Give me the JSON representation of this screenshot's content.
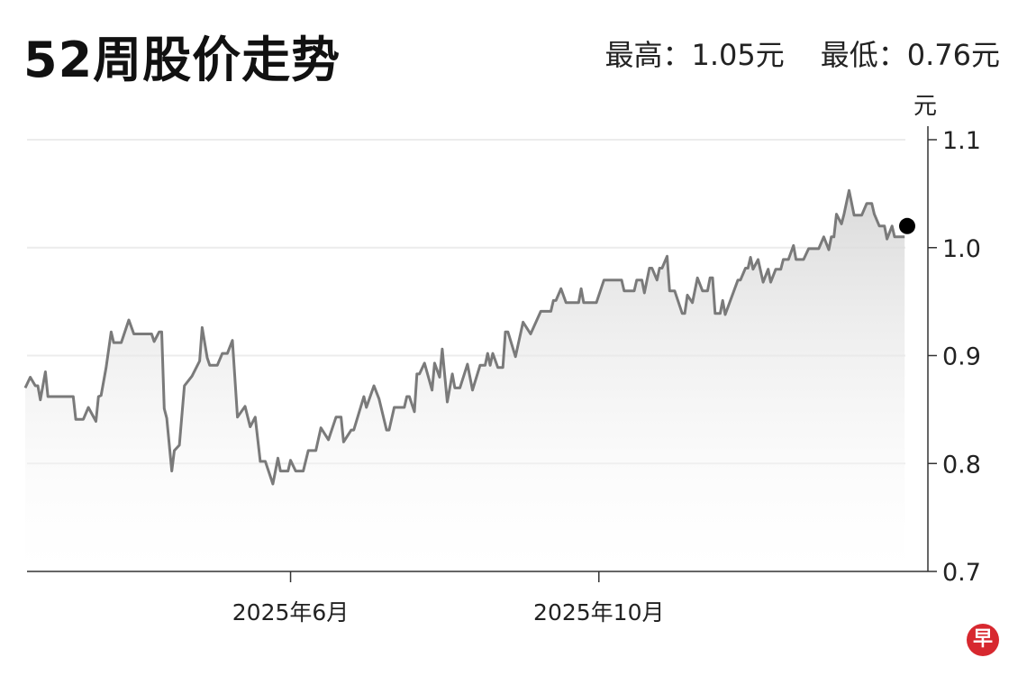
{
  "header": {
    "title": "52周股价走势",
    "high_label": "最高：1.05元",
    "low_label": "最低：0.76元"
  },
  "logo": {
    "text": "早",
    "color": "#d7282f"
  },
  "chart_data": {
    "type": "line",
    "title": "52周股价走势",
    "ylabel": "元",
    "ylim": [
      0.7,
      1.1
    ],
    "yticks": [
      "0.7",
      "0.8",
      "0.9",
      "1.0",
      "1.1"
    ],
    "xlim": [
      "2025-02-16",
      "2026-01-31"
    ],
    "xticks": [
      {
        "date": "2025-06-01",
        "label": "2025年6月"
      },
      {
        "date": "2025-10-01",
        "label": "2025年10月"
      }
    ],
    "grid": true,
    "line_color": "#7a7a7a",
    "fill": "gray gradient under line",
    "last_point": {
      "date": "2026-01-31",
      "value": 1.02,
      "color": "#000000"
    },
    "points": [
      [
        "2025-02-16",
        0.87
      ],
      [
        "2025-02-18",
        0.88
      ],
      [
        "2025-02-20",
        0.872
      ],
      [
        "2025-02-21",
        0.872
      ],
      [
        "2025-02-22",
        0.859
      ],
      [
        "2025-02-24",
        0.885
      ],
      [
        "2025-02-25",
        0.862
      ],
      [
        "2025-03-07",
        0.862
      ],
      [
        "2025-03-08",
        0.841
      ],
      [
        "2025-03-11",
        0.841
      ],
      [
        "2025-03-13",
        0.852
      ],
      [
        "2025-03-16",
        0.839
      ],
      [
        "2025-03-17",
        0.862
      ],
      [
        "2025-03-18",
        0.863
      ],
      [
        "2025-03-20",
        0.889
      ],
      [
        "2025-03-22",
        0.922
      ],
      [
        "2025-03-23",
        0.912
      ],
      [
        "2025-03-26",
        0.912
      ],
      [
        "2025-03-29",
        0.933
      ],
      [
        "2025-03-31",
        0.92
      ],
      [
        "2025-04-07",
        0.92
      ],
      [
        "2025-04-08",
        0.913
      ],
      [
        "2025-04-10",
        0.922
      ],
      [
        "2025-04-11",
        0.922
      ],
      [
        "2025-04-12",
        0.851
      ],
      [
        "2025-04-13",
        0.842
      ],
      [
        "2025-04-15",
        0.793
      ],
      [
        "2025-04-16",
        0.812
      ],
      [
        "2025-04-18",
        0.817
      ],
      [
        "2025-04-20",
        0.872
      ],
      [
        "2025-04-23",
        0.881
      ],
      [
        "2025-04-26",
        0.895
      ],
      [
        "2025-04-27",
        0.926
      ],
      [
        "2025-04-29",
        0.898
      ],
      [
        "2025-04-30",
        0.891
      ],
      [
        "2025-05-03",
        0.891
      ],
      [
        "2025-05-05",
        0.902
      ],
      [
        "2025-05-07",
        0.902
      ],
      [
        "2025-05-09",
        0.914
      ],
      [
        "2025-05-11",
        0.843
      ],
      [
        "2025-05-14",
        0.853
      ],
      [
        "2025-05-16",
        0.834
      ],
      [
        "2025-05-18",
        0.843
      ],
      [
        "2025-05-20",
        0.802
      ],
      [
        "2025-05-22",
        0.802
      ],
      [
        "2025-05-25",
        0.781
      ],
      [
        "2025-05-27",
        0.805
      ],
      [
        "2025-05-28",
        0.793
      ],
      [
        "2025-05-31",
        0.793
      ],
      [
        "2025-06-01",
        0.803
      ],
      [
        "2025-06-03",
        0.793
      ],
      [
        "2025-06-06",
        0.793
      ],
      [
        "2025-06-08",
        0.812
      ],
      [
        "2025-06-11",
        0.812
      ],
      [
        "2025-06-13",
        0.833
      ],
      [
        "2025-06-16",
        0.822
      ],
      [
        "2025-06-19",
        0.843
      ],
      [
        "2025-06-21",
        0.843
      ],
      [
        "2025-06-22",
        0.82
      ],
      [
        "2025-06-25",
        0.831
      ],
      [
        "2025-06-26",
        0.831
      ],
      [
        "2025-06-30",
        0.862
      ],
      [
        "2025-07-01",
        0.852
      ],
      [
        "2025-07-04",
        0.872
      ],
      [
        "2025-07-06",
        0.86
      ],
      [
        "2025-07-09",
        0.831
      ],
      [
        "2025-07-10",
        0.831
      ],
      [
        "2025-07-12",
        0.852
      ],
      [
        "2025-07-16",
        0.852
      ],
      [
        "2025-07-17",
        0.862
      ],
      [
        "2025-07-18",
        0.862
      ],
      [
        "2025-07-20",
        0.848
      ],
      [
        "2025-07-21",
        0.883
      ],
      [
        "2025-07-22",
        0.883
      ],
      [
        "2025-07-24",
        0.893
      ],
      [
        "2025-07-27",
        0.868
      ],
      [
        "2025-07-28",
        0.893
      ],
      [
        "2025-07-30",
        0.88
      ],
      [
        "2025-07-31",
        0.906
      ],
      [
        "2025-08-02",
        0.857
      ],
      [
        "2025-08-04",
        0.883
      ],
      [
        "2025-08-05",
        0.87
      ],
      [
        "2025-08-07",
        0.87
      ],
      [
        "2025-08-10",
        0.892
      ],
      [
        "2025-08-12",
        0.868
      ],
      [
        "2025-08-15",
        0.891
      ],
      [
        "2025-08-17",
        0.891
      ],
      [
        "2025-08-18",
        0.902
      ],
      [
        "2025-08-19",
        0.891
      ],
      [
        "2025-08-20",
        0.902
      ],
      [
        "2025-08-22",
        0.889
      ],
      [
        "2025-08-24",
        0.889
      ],
      [
        "2025-08-25",
        0.922
      ],
      [
        "2025-08-26",
        0.922
      ],
      [
        "2025-08-29",
        0.899
      ],
      [
        "2025-09-01",
        0.931
      ],
      [
        "2025-09-04",
        0.92
      ],
      [
        "2025-09-08",
        0.941
      ],
      [
        "2025-09-12",
        0.941
      ],
      [
        "2025-09-13",
        0.951
      ],
      [
        "2025-09-14",
        0.951
      ],
      [
        "2025-09-16",
        0.962
      ],
      [
        "2025-09-18",
        0.949
      ],
      [
        "2025-09-23",
        0.949
      ],
      [
        "2025-09-24",
        0.962
      ],
      [
        "2025-09-25",
        0.949
      ],
      [
        "2025-09-30",
        0.949
      ],
      [
        "2025-10-03",
        0.97
      ],
      [
        "2025-10-10",
        0.97
      ],
      [
        "2025-10-11",
        0.96
      ],
      [
        "2025-10-15",
        0.96
      ],
      [
        "2025-10-16",
        0.97
      ],
      [
        "2025-10-18",
        0.97
      ],
      [
        "2025-10-19",
        0.958
      ],
      [
        "2025-10-21",
        0.981
      ],
      [
        "2025-10-22",
        0.981
      ],
      [
        "2025-10-24",
        0.97
      ],
      [
        "2025-10-25",
        0.981
      ],
      [
        "2025-10-26",
        0.981
      ],
      [
        "2025-10-28",
        0.992
      ],
      [
        "2025-10-29",
        0.96
      ],
      [
        "2025-10-31",
        0.96
      ],
      [
        "2025-11-03",
        0.939
      ],
      [
        "2025-11-04",
        0.939
      ],
      [
        "2025-11-05",
        0.956
      ],
      [
        "2025-11-07",
        0.949
      ],
      [
        "2025-11-09",
        0.972
      ],
      [
        "2025-11-11",
        0.96
      ],
      [
        "2025-11-13",
        0.96
      ],
      [
        "2025-11-14",
        0.972
      ],
      [
        "2025-11-15",
        0.972
      ],
      [
        "2025-11-16",
        0.939
      ],
      [
        "2025-11-18",
        0.939
      ],
      [
        "2025-11-19",
        0.951
      ],
      [
        "2025-11-20",
        0.938
      ],
      [
        "2025-11-25",
        0.97
      ],
      [
        "2025-11-26",
        0.97
      ],
      [
        "2025-11-28",
        0.981
      ],
      [
        "2025-11-29",
        0.981
      ],
      [
        "2025-11-30",
        0.991
      ],
      [
        "2025-12-01",
        0.98
      ],
      [
        "2025-12-03",
        0.989
      ],
      [
        "2025-12-05",
        0.968
      ],
      [
        "2025-12-07",
        0.98
      ],
      [
        "2025-12-08",
        0.968
      ],
      [
        "2025-12-10",
        0.98
      ],
      [
        "2025-12-12",
        0.98
      ],
      [
        "2025-12-13",
        0.989
      ],
      [
        "2025-12-15",
        0.989
      ],
      [
        "2025-12-17",
        1.002
      ],
      [
        "2025-12-18",
        0.989
      ],
      [
        "2025-12-21",
        0.989
      ],
      [
        "2025-12-23",
        0.999
      ],
      [
        "2025-12-27",
        0.999
      ],
      [
        "2025-12-29",
        1.01
      ],
      [
        "2025-12-31",
        0.998
      ],
      [
        "2026-01-01",
        1.01
      ],
      [
        "2026-01-02",
        1.01
      ],
      [
        "2026-01-03",
        1.031
      ],
      [
        "2026-01-05",
        1.022
      ],
      [
        "2026-01-06",
        1.031
      ],
      [
        "2026-01-08",
        1.053
      ],
      [
        "2026-01-10",
        1.03
      ],
      [
        "2026-01-13",
        1.03
      ],
      [
        "2026-01-15",
        1.041
      ],
      [
        "2026-01-17",
        1.041
      ],
      [
        "2026-01-18",
        1.031
      ],
      [
        "2026-01-20",
        1.02
      ],
      [
        "2026-01-22",
        1.02
      ],
      [
        "2026-01-23",
        1.008
      ],
      [
        "2026-01-25",
        1.02
      ],
      [
        "2026-01-26",
        1.01
      ],
      [
        "2026-01-30",
        1.01
      ]
    ]
  }
}
